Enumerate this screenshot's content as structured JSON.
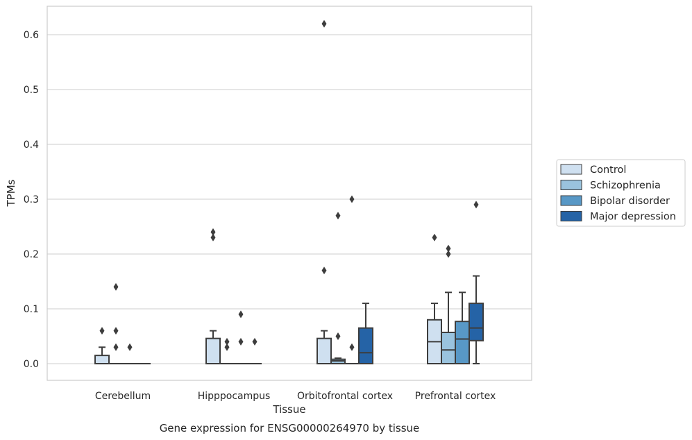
{
  "chart_data": {
    "type": "box",
    "title": "",
    "caption": "Gene expression for ENSG00000264970 by tissue",
    "xlabel": "Tissue",
    "ylabel": "TPMs",
    "ylim": [
      -0.03,
      0.652
    ],
    "yticks": [
      "0.0",
      "0.1",
      "0.2",
      "0.3",
      "0.4",
      "0.5",
      "0.6"
    ],
    "ytick_values": [
      0,
      0.1,
      0.2,
      0.3,
      0.4,
      0.5,
      0.6
    ],
    "grid": "horizontal",
    "legend_position": "right",
    "categories": [
      "Cerebellum",
      "Hipppocampus",
      "Orbitofrontal cortex",
      "Prefrontal cortex"
    ],
    "series": [
      {
        "name": "Control",
        "color": "#cfe0f0",
        "boxes": [
          {
            "q1": 0,
            "median": 0,
            "q3": 0.015,
            "whisker_low": 0,
            "whisker_high": 0.03,
            "outliers": [
              0.06
            ]
          },
          {
            "q1": 0,
            "median": 0,
            "q3": 0.046,
            "whisker_low": 0,
            "whisker_high": 0.06,
            "outliers": [
              0.23,
              0.24
            ]
          },
          {
            "q1": 0,
            "median": 0,
            "q3": 0.046,
            "whisker_low": 0,
            "whisker_high": 0.06,
            "outliers": [
              0.17,
              0.62
            ]
          },
          {
            "q1": 0,
            "median": 0.04,
            "q3": 0.08,
            "whisker_low": 0,
            "whisker_high": 0.11,
            "outliers": [
              0.23
            ]
          }
        ]
      },
      {
        "name": "Schizophrenia",
        "color": "#9ac3de",
        "boxes": [
          {
            "q1": 0,
            "median": 0,
            "q3": 0,
            "whisker_low": 0,
            "whisker_high": 0,
            "outliers": [
              0.03,
              0.06,
              0.14
            ]
          },
          {
            "q1": 0,
            "median": 0,
            "q3": 0,
            "whisker_low": 0,
            "whisker_high": 0,
            "outliers": [
              0.03,
              0.04
            ]
          },
          {
            "q1": 0,
            "median": 0.005,
            "q3": 0.008,
            "whisker_low": 0,
            "whisker_high": 0.01,
            "outliers": [
              0.05,
              0.27
            ]
          },
          {
            "q1": 0,
            "median": 0.025,
            "q3": 0.057,
            "whisker_low": 0,
            "whisker_high": 0.13,
            "outliers": [
              0.2,
              0.21
            ]
          }
        ]
      },
      {
        "name": "Bipolar disorder",
        "color": "#5898c6",
        "boxes": [
          {
            "q1": 0,
            "median": 0,
            "q3": 0,
            "whisker_low": 0,
            "whisker_high": 0,
            "outliers": [
              0.03
            ]
          },
          {
            "q1": 0,
            "median": 0,
            "q3": 0,
            "whisker_low": 0,
            "whisker_high": 0,
            "outliers": [
              0.04,
              0.09
            ]
          },
          {
            "q1": 0,
            "median": 0,
            "q3": 0,
            "whisker_low": 0,
            "whisker_high": 0,
            "outliers": [
              0.03,
              0.3
            ]
          },
          {
            "q1": 0,
            "median": 0.045,
            "q3": 0.077,
            "whisker_low": 0,
            "whisker_high": 0.13,
            "outliers": []
          }
        ]
      },
      {
        "name": "Major depression",
        "color": "#2563a6",
        "boxes": [
          {
            "q1": 0,
            "median": 0,
            "q3": 0,
            "whisker_low": 0,
            "whisker_high": 0,
            "outliers": []
          },
          {
            "q1": 0,
            "median": 0,
            "q3": 0,
            "whisker_low": 0,
            "whisker_high": 0,
            "outliers": [
              0.04
            ]
          },
          {
            "q1": 0,
            "median": 0.02,
            "q3": 0.065,
            "whisker_low": 0,
            "whisker_high": 0.11,
            "outliers": []
          },
          {
            "q1": 0.042,
            "median": 0.065,
            "q3": 0.11,
            "whisker_low": 0,
            "whisker_high": 0.16,
            "outliers": [
              0.29
            ]
          }
        ]
      }
    ]
  }
}
